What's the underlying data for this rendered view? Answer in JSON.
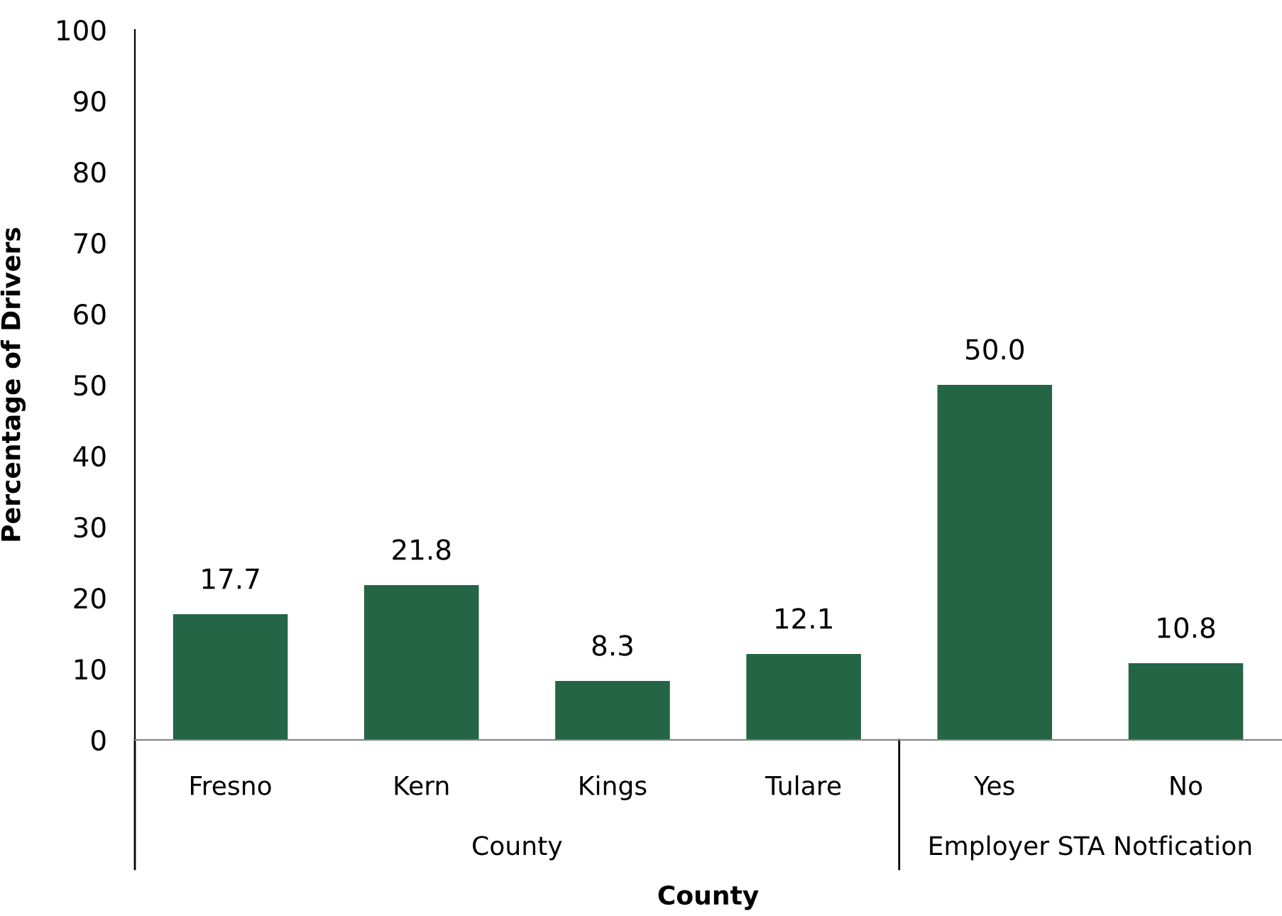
{
  "chart_data": {
    "type": "bar",
    "categories": [
      "Fresno",
      "Kern",
      "Kings",
      "Tulare",
      "Yes",
      "No"
    ],
    "values": [
      17.7,
      21.8,
      8.3,
      12.1,
      50.0,
      10.8
    ],
    "value_labels": [
      "17.7",
      "21.8",
      "8.3",
      "12.1",
      "50.0",
      "10.8"
    ],
    "color": "#236544",
    "xlabel": "County",
    "ylabel": "Percentage of Drivers",
    "ylim": [
      0,
      100
    ],
    "yticks": [
      0,
      10,
      20,
      30,
      40,
      50,
      60,
      70,
      80,
      90,
      100
    ],
    "annotations": [
      "County",
      "Employer STA Notfication"
    ],
    "grid": false
  }
}
